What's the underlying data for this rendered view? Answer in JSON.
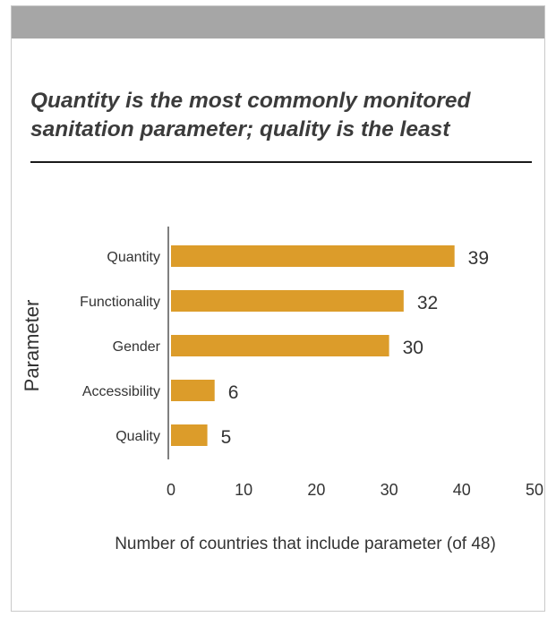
{
  "title_lines": [
    "Quantity is the most commonly monitored",
    "sanitation parameter; quality is the least"
  ],
  "colors": {
    "bar": "#dc9c2a",
    "band": "#a6a6a6",
    "text": "#333333",
    "axis": "#555555"
  },
  "chart_data": {
    "type": "bar",
    "orientation": "horizontal",
    "categories": [
      "Quantity",
      "Functionality",
      "Gender",
      "Accessibility",
      "Quality"
    ],
    "values": [
      39,
      32,
      30,
      6,
      5
    ],
    "xlabel": "Number of countries that include parameter (of 48)",
    "ylabel": "Parameter",
    "xlim": [
      0,
      50
    ],
    "xticks": [
      "0",
      "10",
      "20",
      "30",
      "40",
      "50"
    ],
    "grid": false,
    "legend": "none"
  }
}
